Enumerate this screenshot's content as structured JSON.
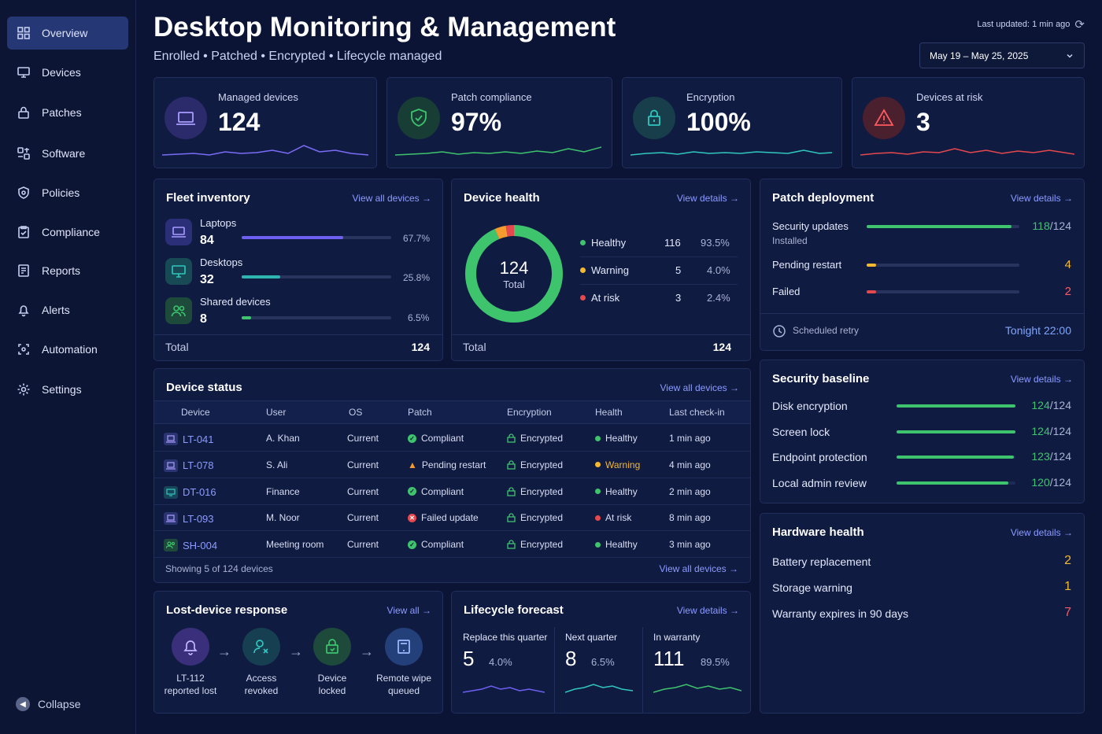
{
  "sidebar": {
    "items": [
      {
        "label": "Overview",
        "icon": "grid-icon",
        "active": true
      },
      {
        "label": "Devices",
        "icon": "monitor-icon"
      },
      {
        "label": "Patches",
        "icon": "lock-icon"
      },
      {
        "label": "Software",
        "icon": "apps-icon"
      },
      {
        "label": "Policies",
        "icon": "shield-icon"
      },
      {
        "label": "Compliance",
        "icon": "clipboard-check-icon"
      },
      {
        "label": "Reports",
        "icon": "report-icon"
      },
      {
        "label": "Alerts",
        "icon": "bell-icon"
      },
      {
        "label": "Automation",
        "icon": "automation-icon"
      },
      {
        "label": "Settings",
        "icon": "gear-icon"
      }
    ],
    "collapse_label": "Collapse"
  },
  "header": {
    "title": "Desktop Monitoring & Management",
    "subtitle": "Enrolled • Patched • Encrypted • Lifecycle managed",
    "last_updated": "Last updated: 1 min ago",
    "date_range": "May 19 – May 25, 2025"
  },
  "kpis": [
    {
      "label": "Managed devices",
      "value": "124",
      "color": "#7a6cf5",
      "icon": "laptop-icon"
    },
    {
      "label": "Patch compliance",
      "value": "97%",
      "color": "#3ec46d",
      "icon": "shield-check-icon"
    },
    {
      "label": "Encryption",
      "value": "100%",
      "color": "#2fc7c0",
      "icon": "lock-icon"
    },
    {
      "label": "Devices at risk",
      "value": "3",
      "color": "#e5484d",
      "icon": "warning-icon"
    }
  ],
  "fleet": {
    "title": "Fleet inventory",
    "link": "View all devices →",
    "rows": [
      {
        "name": "Laptops",
        "count": "84",
        "pct": "67.7%",
        "fill": 0.677,
        "color": "#6d5ff0"
      },
      {
        "name": "Desktops",
        "count": "32",
        "pct": "25.8%",
        "fill": 0.258,
        "color": "#2fb5b0"
      },
      {
        "name": "Shared devices",
        "count": "8",
        "pct": "6.5%",
        "fill": 0.065,
        "color": "#3ec46d"
      }
    ],
    "total_label": "Total",
    "total_value": "124"
  },
  "health": {
    "title": "Device health",
    "link": "View details →",
    "center_value": "124",
    "center_label": "Total",
    "rows": [
      {
        "name": "Healthy",
        "count": "116",
        "pct": "93.5%",
        "color": "#3ec46d"
      },
      {
        "name": "Warning",
        "count": "5",
        "pct": "4.0%",
        "color": "#f5b82e"
      },
      {
        "name": "At risk",
        "count": "3",
        "pct": "2.4%",
        "color": "#e5484d"
      }
    ],
    "total_label": "Total",
    "total_value": "124"
  },
  "patch": {
    "title": "Patch deployment",
    "link": "View details →",
    "rows": [
      {
        "name": "Security updates",
        "sub": "Installed",
        "value": "118",
        "of": "/124",
        "fill": 0.95,
        "color": "#3ec46d"
      },
      {
        "name": "Pending restart",
        "sub": "",
        "value": "4",
        "of": "",
        "fill": 0.03,
        "color": "#f5b82e"
      },
      {
        "name": "Failed",
        "sub": "",
        "value": "2",
        "of": "",
        "fill": 0.02,
        "color": "#e5484d"
      }
    ],
    "retry_label": "Scheduled retry",
    "retry_value": "Tonight 22:00"
  },
  "status": {
    "title": "Device status",
    "link": "View all devices →",
    "columns": [
      "Device",
      "User",
      "OS",
      "Patch",
      "Encryption",
      "Health",
      "Last check-in"
    ],
    "rows": [
      {
        "device": "LT-041",
        "user": "A. Khan",
        "os": "Current",
        "patch": "Compliant",
        "patch_state": "ok",
        "enc": "Encrypted",
        "health": "Healthy",
        "health_color": "#3ec46d",
        "checkin": "1 min ago",
        "type": "laptop"
      },
      {
        "device": "LT-078",
        "user": "S. Ali",
        "os": "Current",
        "patch": "Pending restart",
        "patch_state": "warn",
        "enc": "Encrypted",
        "health": "Warning",
        "health_color": "#f5b82e",
        "checkin": "4 min ago",
        "type": "laptop"
      },
      {
        "device": "DT-016",
        "user": "Finance",
        "os": "Current",
        "patch": "Compliant",
        "patch_state": "ok",
        "enc": "Encrypted",
        "health": "Healthy",
        "health_color": "#3ec46d",
        "checkin": "2 min ago",
        "type": "desktop"
      },
      {
        "device": "LT-093",
        "user": "M. Noor",
        "os": "Current",
        "patch": "Failed update",
        "patch_state": "fail",
        "enc": "Encrypted",
        "health": "At risk",
        "health_color": "#e5484d",
        "checkin": "8 min ago",
        "type": "laptop"
      },
      {
        "device": "SH-004",
        "user": "Meeting room",
        "os": "Current",
        "patch": "Compliant",
        "patch_state": "ok",
        "enc": "Encrypted",
        "health": "Healthy",
        "health_color": "#3ec46d",
        "checkin": "3 min ago",
        "type": "shared"
      }
    ],
    "footer_text": "Showing 5 of 124 devices",
    "footer_link": "View all devices →"
  },
  "baseline": {
    "title": "Security baseline",
    "link": "View details →",
    "rows": [
      {
        "name": "Disk encryption",
        "value": "124",
        "of": "/124",
        "fill": 1.0
      },
      {
        "name": "Screen lock",
        "value": "124",
        "of": "/124",
        "fill": 1.0
      },
      {
        "name": "Endpoint protection",
        "value": "123",
        "of": "/124",
        "fill": 0.99
      },
      {
        "name": "Local admin review",
        "value": "120",
        "of": "/124",
        "fill": 0.94
      }
    ]
  },
  "hardware": {
    "title": "Hardware health",
    "link": "View details →",
    "rows": [
      {
        "name": "Battery replacement",
        "value": "2",
        "color": "#f5b82e"
      },
      {
        "name": "Storage warning",
        "value": "1",
        "color": "#f5b82e"
      },
      {
        "name": "Warranty expires in 90 days",
        "value": "7",
        "color": "#e5484d"
      }
    ]
  },
  "lost": {
    "title": "Lost-device response",
    "link": "View all →",
    "steps": [
      {
        "line1": "LT-112",
        "line2": "reported lost",
        "icon": "bell-icon",
        "color": "#a78bfa",
        "bg": "#2e2b6b"
      },
      {
        "line1": "Access",
        "line2": "revoked",
        "icon": "user-x-icon",
        "color": "#2fc7c0",
        "bg": "#173f52"
      },
      {
        "line1": "Device",
        "line2": "locked",
        "icon": "lock-icon",
        "color": "#3ec46d",
        "bg": "#1d4a3a"
      },
      {
        "line1": "Remote wipe",
        "line2": "queued",
        "icon": "tablet-icon",
        "color": "#7fa7ff",
        "bg": "#24407a"
      }
    ]
  },
  "lifecycle": {
    "title": "Lifecycle forecast",
    "link": "View details →",
    "cols": [
      {
        "label": "Replace this quarter",
        "value": "5",
        "pct": "4.0%",
        "color": "#6d5ff0"
      },
      {
        "label": "Next quarter",
        "value": "8",
        "pct": "6.5%",
        "color": "#2fc7c0"
      },
      {
        "label": "In warranty",
        "value": "111",
        "pct": "89.5%",
        "color": "#3ec46d"
      }
    ]
  }
}
